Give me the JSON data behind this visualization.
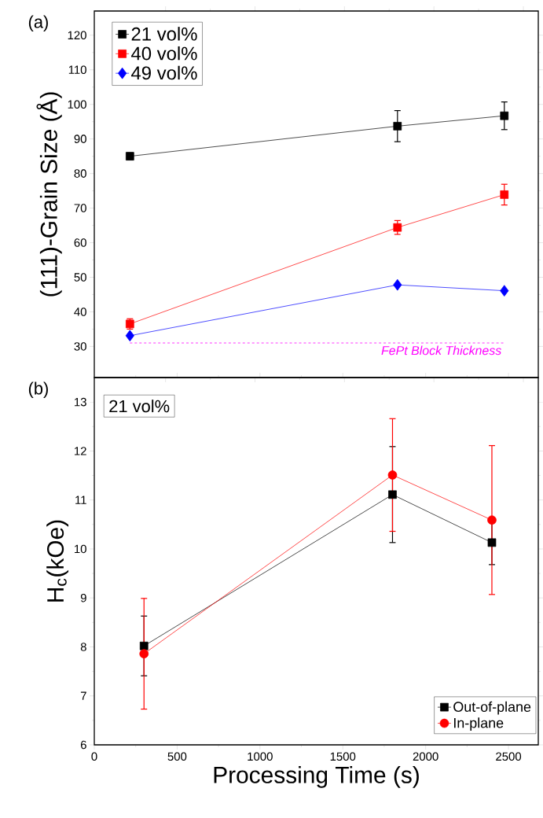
{
  "chart_data": [
    {
      "type": "line",
      "ylabel": "(111)-Grain Size (Å)",
      "annotations": [
        "(a)"
      ],
      "x": [
        215,
        1830,
        2475
      ],
      "xlim": [
        0,
        2680
      ],
      "xticks": [
        {
          "value": 430,
          "label": null
        },
        {
          "value": 970,
          "label": null
        },
        {
          "value": 1510,
          "label": null
        },
        {
          "value": 2050,
          "label": null
        },
        {
          "value": 2590,
          "label": null
        }
      ],
      "ylim": [
        21,
        127
      ],
      "yticks": [
        30,
        40,
        50,
        60,
        70,
        80,
        90,
        100,
        110,
        120
      ],
      "tick_labels": "y",
      "legend": "top left",
      "series": [
        {
          "name": "21 vol%",
          "color": "#000000",
          "marker": "square",
          "values": [
            85,
            93.7,
            96.7
          ],
          "errors": [
            1,
            4.5,
            4
          ]
        },
        {
          "name": "40 vol%",
          "color": "#ff0000",
          "marker": "square",
          "values": [
            36.5,
            64.4,
            73.9
          ],
          "errors": [
            1.5,
            2,
            3
          ]
        },
        {
          "name": "49 vol%",
          "color": "#0000ff",
          "marker": "diamond",
          "values": [
            33.1,
            47.8,
            46.1
          ]
        }
      ],
      "ref_lines": [
        {
          "axis": "y",
          "value": 31,
          "label": "FePt Block Thickness",
          "color": "#ff00ff",
          "line_style": "dashed"
        }
      ]
    },
    {
      "type": "line",
      "xlabel": "Processing Time (s)",
      "ylabel": "H$_{c}$(kOe)",
      "annotations": [
        "(b)",
        "21 vol%"
      ],
      "x": [
        300,
        1800,
        2400
      ],
      "xlim": [
        0,
        2680
      ],
      "xticks": [
        0,
        500,
        1000,
        1500,
        2000,
        2500
      ],
      "ylim": [
        6,
        13.5
      ],
      "yticks": [
        6,
        7,
        8,
        9,
        10,
        11,
        12,
        13
      ],
      "legend": "bottom right",
      "series": [
        {
          "name": "Out-of-plane",
          "color": "#000000",
          "marker": "square",
          "values": [
            8.02,
            11.11,
            10.13
          ],
          "errors": [
            0.61,
            0.98,
            0.45
          ]
        },
        {
          "name": "In-plane",
          "color": "#ff0000",
          "marker": "circle",
          "values": [
            7.86,
            11.51,
            10.59
          ],
          "errors": [
            1.13,
            1.15,
            1.52
          ]
        }
      ]
    }
  ]
}
